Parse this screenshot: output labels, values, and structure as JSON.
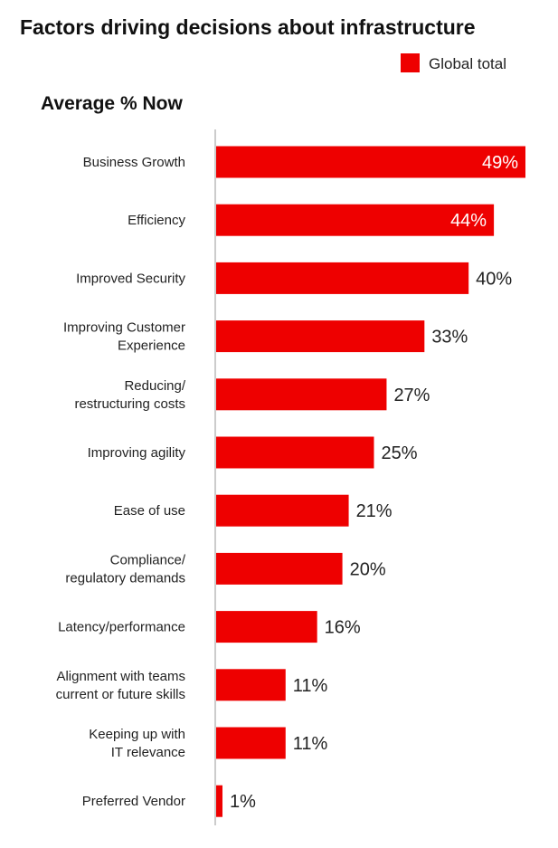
{
  "chart_data": {
    "type": "bar",
    "orientation": "horizontal",
    "title": "Factors driving decisions about infrastructure",
    "subtitle": "Average % Now",
    "legend": {
      "position": "top-right",
      "entries": [
        "Global total"
      ]
    },
    "series": [
      {
        "name": "Global total",
        "color": "#ee0000"
      }
    ],
    "categories": [
      [
        "Business Growth"
      ],
      [
        "Efficiency"
      ],
      [
        "Improved Security"
      ],
      [
        "Improving Customer",
        "Experience"
      ],
      [
        "Reducing/",
        "restructuring costs"
      ],
      [
        "Improving agility"
      ],
      [
        "Ease of use"
      ],
      [
        "Compliance/",
        "regulatory demands"
      ],
      [
        "Latency/performance"
      ],
      [
        "Alignment with teams",
        "current or future skills"
      ],
      [
        "Keeping up with",
        "IT relevance"
      ],
      [
        "Preferred Vendor"
      ]
    ],
    "values": [
      49,
      44,
      40,
      33,
      27,
      25,
      21,
      20,
      16,
      11,
      11,
      1
    ],
    "value_labels": [
      "49%",
      "44%",
      "40%",
      "33%",
      "27%",
      "25%",
      "21%",
      "20%",
      "16%",
      "11%",
      "11%",
      "1%"
    ],
    "xlim": [
      0,
      49
    ],
    "grid": false
  }
}
